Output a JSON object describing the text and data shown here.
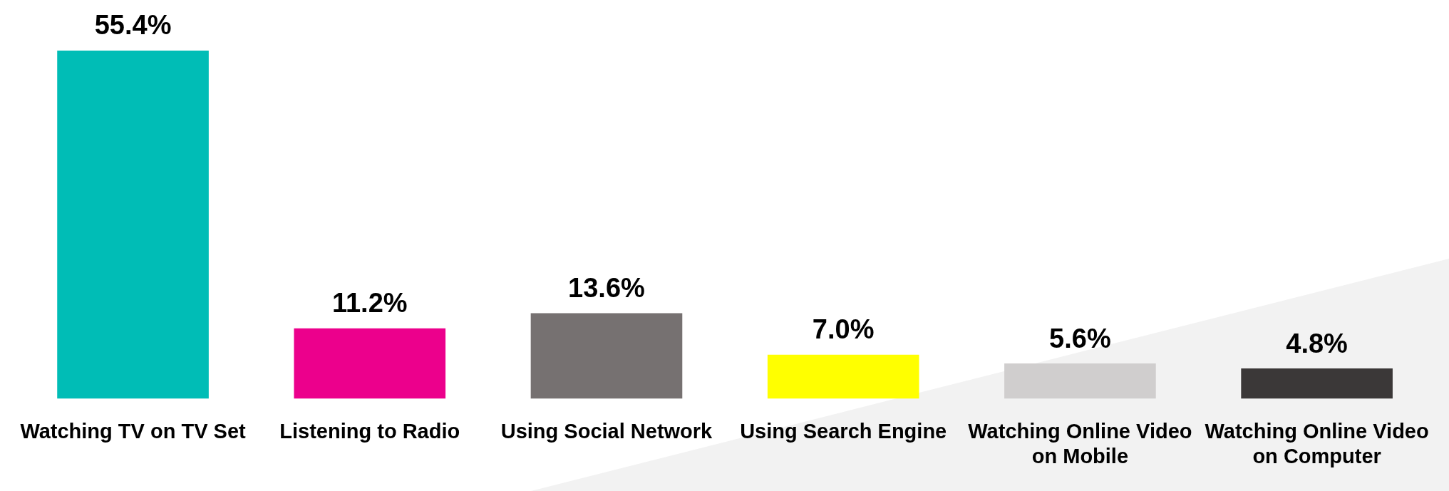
{
  "chart_data": {
    "type": "bar",
    "categories": [
      "Watching TV on TV Set",
      "Listening to Radio",
      "Using Social Network",
      "Using Search Engine",
      "Watching Online Video on Mobile",
      "Watching Online Video on Computer"
    ],
    "values": [
      55.4,
      11.2,
      13.6,
      7.0,
      5.6,
      4.8
    ],
    "colors": [
      "#00bdb6",
      "#ec008c",
      "#767171",
      "#ffff00",
      "#d0cece",
      "#3b3838"
    ],
    "value_labels": [
      "55.4%",
      "11.2%",
      "13.6%",
      "7.0%",
      "5.6%",
      "4.8%"
    ],
    "tick_labels": "x",
    "grid": false,
    "legend": false
  }
}
